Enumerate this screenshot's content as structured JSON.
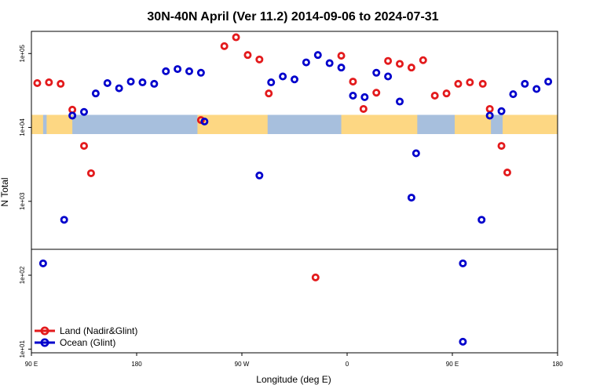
{
  "chart_data": {
    "type": "scatter",
    "title": "30N-40N April (Ver 11.2)   2014-09-06 to 2024-07-31",
    "xlabel": "Longitude (deg E)",
    "ylabel": "N Total",
    "xscale_note": "x axis spans 90E eastward across the dateline to 180 (wrapped longitude)",
    "xlim": [
      90,
      540
    ],
    "yscale": "log10",
    "ylim_log10": [
      0.95,
      5.3
    ],
    "x_ticks": [
      {
        "x": 90,
        "label": "90 E"
      },
      {
        "x": 180,
        "label": "180"
      },
      {
        "x": 270,
        "label": "90 W"
      },
      {
        "x": 360,
        "label": "0"
      },
      {
        "x": 450,
        "label": "90 E"
      },
      {
        "x": 540,
        "label": "180"
      }
    ],
    "y_ticks": [
      {
        "log10": 1,
        "label": "1e+01"
      },
      {
        "log10": 2,
        "label": "1e+02"
      },
      {
        "log10": 3,
        "label": "1e+03"
      },
      {
        "log10": 4,
        "label": "1e+04"
      },
      {
        "log10": 5,
        "label": "1e+05"
      }
    ],
    "panel_split_log10": 2.35,
    "map_band_log10": [
      3.91,
      4.17
    ],
    "series": [
      {
        "name": "Land (Nadir&Glint)",
        "color": "#e31a1c",
        "points": [
          {
            "x": 95,
            "y": 4.6
          },
          {
            "x": 105,
            "y": 4.61
          },
          {
            "x": 115,
            "y": 4.59
          },
          {
            "x": 125,
            "y": 4.24
          },
          {
            "x": 135,
            "y": 3.75
          },
          {
            "x": 141,
            "y": 3.38
          },
          {
            "x": 235,
            "y": 4.1
          },
          {
            "x": 255,
            "y": 5.1
          },
          {
            "x": 265,
            "y": 5.22
          },
          {
            "x": 275,
            "y": 4.98
          },
          {
            "x": 285,
            "y": 4.92
          },
          {
            "x": 293,
            "y": 4.46
          },
          {
            "x": 333,
            "y": 1.97
          },
          {
            "x": 355,
            "y": 4.97
          },
          {
            "x": 365,
            "y": 4.62
          },
          {
            "x": 374,
            "y": 4.25
          },
          {
            "x": 385,
            "y": 4.47
          },
          {
            "x": 395,
            "y": 4.9
          },
          {
            "x": 405,
            "y": 4.86
          },
          {
            "x": 415,
            "y": 4.81
          },
          {
            "x": 425,
            "y": 4.91
          },
          {
            "x": 435,
            "y": 4.43
          },
          {
            "x": 445,
            "y": 4.46
          },
          {
            "x": 455,
            "y": 4.59
          },
          {
            "x": 465,
            "y": 4.61
          },
          {
            "x": 476,
            "y": 4.59
          },
          {
            "x": 482,
            "y": 4.25
          },
          {
            "x": 492,
            "y": 3.75
          },
          {
            "x": 497,
            "y": 3.39
          }
        ]
      },
      {
        "name": "Ocean (Glint)",
        "color": "#0000cc",
        "points": [
          {
            "x": 100,
            "y": 2.16
          },
          {
            "x": 118,
            "y": 2.75
          },
          {
            "x": 125,
            "y": 4.16
          },
          {
            "x": 135,
            "y": 4.21
          },
          {
            "x": 145,
            "y": 4.46
          },
          {
            "x": 155,
            "y": 4.6
          },
          {
            "x": 165,
            "y": 4.53
          },
          {
            "x": 175,
            "y": 4.62
          },
          {
            "x": 185,
            "y": 4.61
          },
          {
            "x": 195,
            "y": 4.59
          },
          {
            "x": 205,
            "y": 4.76
          },
          {
            "x": 215,
            "y": 4.79
          },
          {
            "x": 225,
            "y": 4.76
          },
          {
            "x": 235,
            "y": 4.74
          },
          {
            "x": 238,
            "y": 4.08
          },
          {
            "x": 285,
            "y": 3.35
          },
          {
            "x": 295,
            "y": 4.61
          },
          {
            "x": 305,
            "y": 4.69
          },
          {
            "x": 315,
            "y": 4.65
          },
          {
            "x": 325,
            "y": 4.88
          },
          {
            "x": 335,
            "y": 4.98
          },
          {
            "x": 345,
            "y": 4.87
          },
          {
            "x": 355,
            "y": 4.81
          },
          {
            "x": 365,
            "y": 4.43
          },
          {
            "x": 375,
            "y": 4.41
          },
          {
            "x": 385,
            "y": 4.74
          },
          {
            "x": 395,
            "y": 4.69
          },
          {
            "x": 405,
            "y": 4.35
          },
          {
            "x": 415,
            "y": 3.05
          },
          {
            "x": 419,
            "y": 3.65
          },
          {
            "x": 459,
            "y": 2.16
          },
          {
            "x": 459,
            "y": 1.1
          },
          {
            "x": 475,
            "y": 2.75
          },
          {
            "x": 482,
            "y": 4.16
          },
          {
            "x": 492,
            "y": 4.22
          },
          {
            "x": 502,
            "y": 4.45
          },
          {
            "x": 512,
            "y": 4.59
          },
          {
            "x": 522,
            "y": 4.52
          },
          {
            "x": 532,
            "y": 4.62
          }
        ]
      }
    ],
    "legend": {
      "position": "bottom-left"
    }
  },
  "colors": {
    "land": "#fdd783",
    "ocean": "#a7bfdd",
    "frame": "#000000"
  }
}
